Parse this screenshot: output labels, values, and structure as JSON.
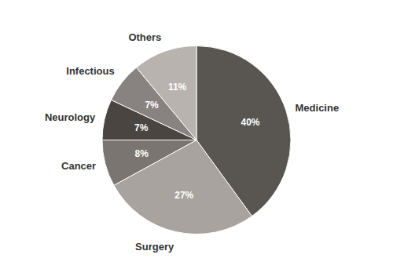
{
  "chart_data": {
    "type": "pie",
    "categories": [
      "Medicine",
      "Surgery",
      "Cancer",
      "Neurology",
      "Infectious",
      "Others"
    ],
    "values": [
      40,
      27,
      8,
      7,
      7,
      11
    ],
    "value_labels": [
      "40%",
      "27%",
      "8%",
      "7%",
      "7%",
      "11%"
    ],
    "colors": [
      "#595550",
      "#a8a39e",
      "#7a7570",
      "#4a4540",
      "#888380",
      "#b8b3ae"
    ],
    "data_labels": true
  }
}
